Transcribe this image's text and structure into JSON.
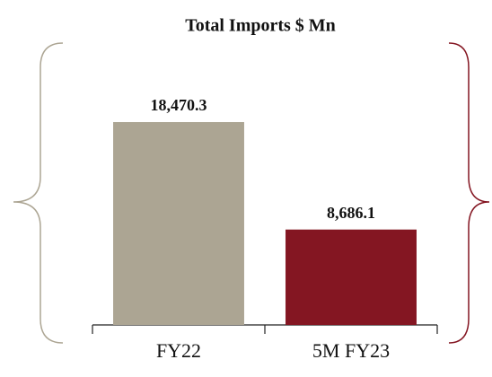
{
  "chart_data": {
    "type": "bar",
    "title": "Total Imports $ Mn",
    "categories": [
      "FY22",
      "5M FY23"
    ],
    "values": [
      18470.3,
      8686.1
    ],
    "value_labels": [
      "18,470.3",
      "8,686.1"
    ],
    "colors": [
      "#aca593",
      "#841622"
    ]
  }
}
